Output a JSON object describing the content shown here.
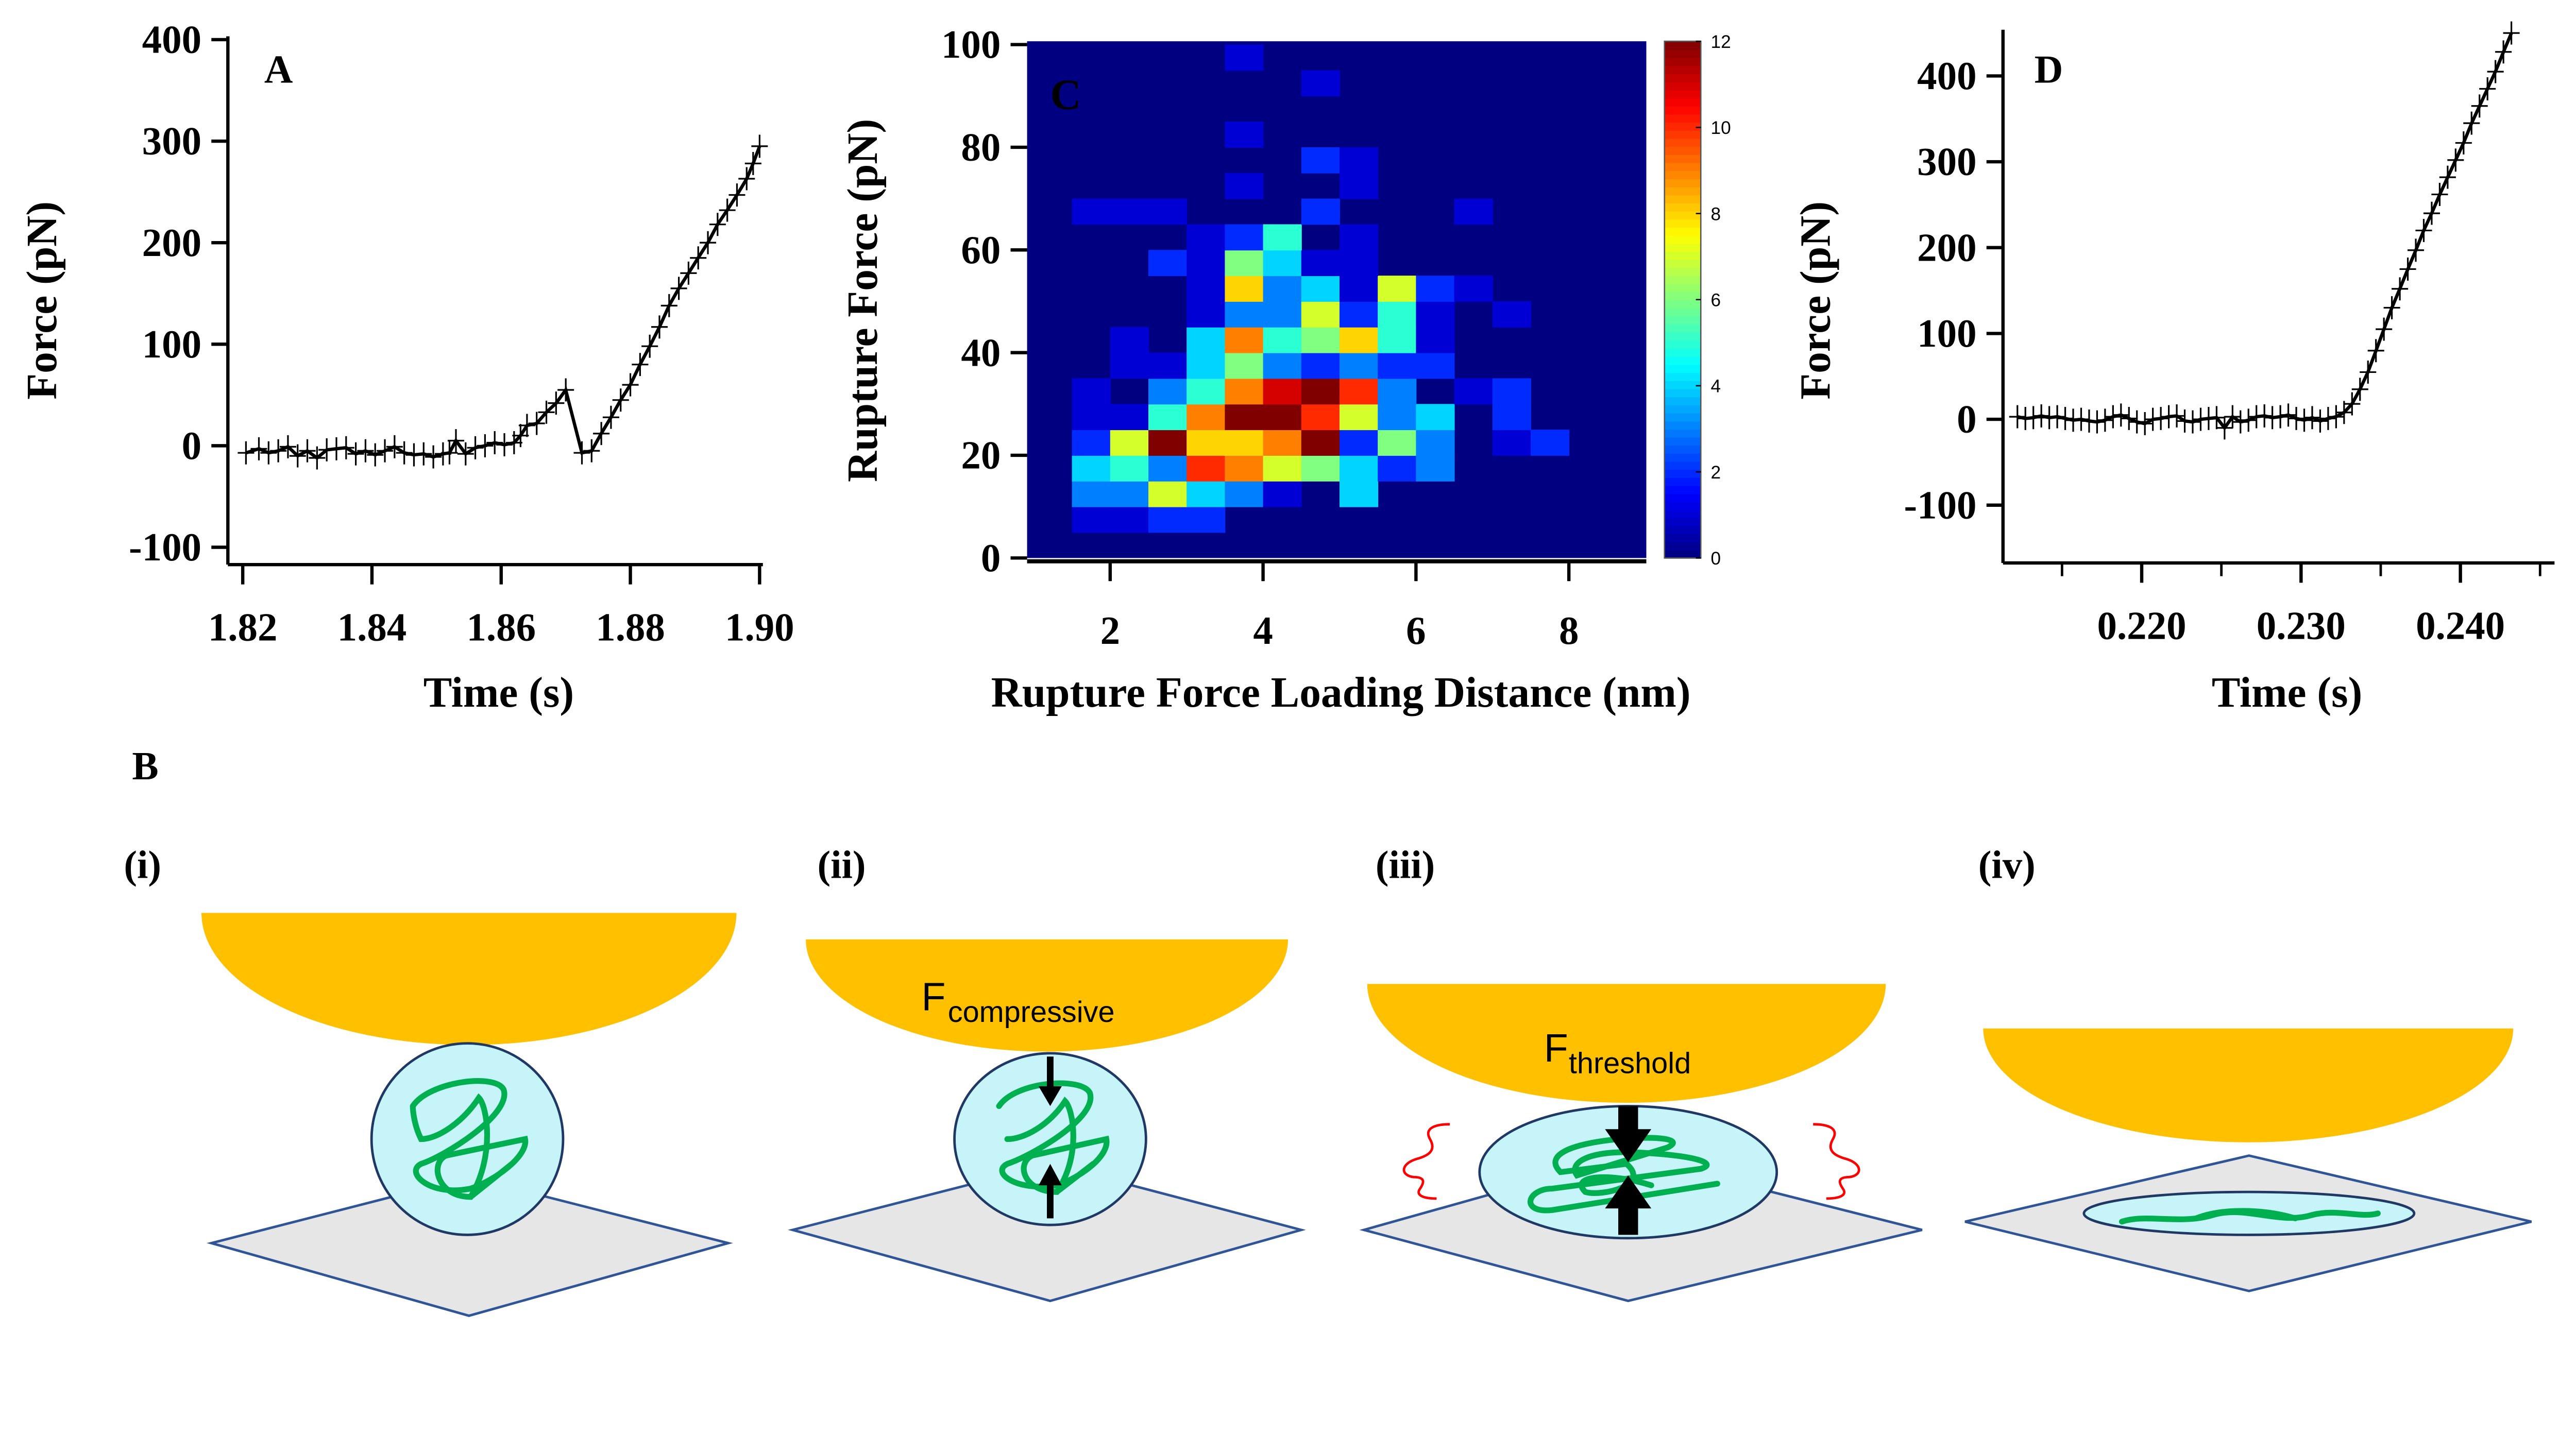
{
  "panel_b": {
    "letter": "B",
    "steps": [
      {
        "label": "(i)"
      },
      {
        "label": "(ii)",
        "force_main": "F",
        "force_sub": "compressive"
      },
      {
        "label": "(iii)",
        "force_main": "F",
        "force_sub": "threshold"
      },
      {
        "label": "(iv)"
      }
    ],
    "colors": {
      "tip": "#FFC000",
      "droplet": "#C6F4F8",
      "outline": "#1F3864",
      "chain": "#00B050",
      "surface": "#E6E6E6",
      "surface_edge": "#2F5597",
      "strain": "#FF0000",
      "arrow": "#000000"
    }
  },
  "chart_data": [
    {
      "panel": "A",
      "type": "line",
      "marker": "plus",
      "xlabel": "Time (s)",
      "ylabel": "Force (pN)",
      "xlim": [
        1.819,
        1.901
      ],
      "ylim": [
        -114,
        400
      ],
      "xticks": [
        1.82,
        1.84,
        1.86,
        1.88,
        1.9
      ],
      "xtick_labels": [
        "1.82",
        "1.84",
        "1.86",
        "1.88",
        "1.90"
      ],
      "yticks": [
        -100,
        0,
        100,
        200,
        300,
        400
      ],
      "ytick_labels": [
        "-100",
        "0",
        "100",
        "200",
        "300",
        "400"
      ],
      "grid": false,
      "x": [
        1.8205,
        1.8225,
        1.824,
        1.8255,
        1.827,
        1.8285,
        1.83,
        1.8315,
        1.833,
        1.8345,
        1.836,
        1.8375,
        1.839,
        1.8405,
        1.842,
        1.8435,
        1.845,
        1.8465,
        1.848,
        1.8495,
        1.851,
        1.852,
        1.853,
        1.8545,
        1.856,
        1.8575,
        1.859,
        1.8605,
        1.862,
        1.863,
        1.864,
        1.8655,
        1.867,
        1.8685,
        1.87,
        1.8725,
        1.874,
        1.8755,
        1.877,
        1.8785,
        1.88,
        1.8815,
        1.883,
        1.8845,
        1.886,
        1.8875,
        1.889,
        1.8905,
        1.892,
        1.8935,
        1.895,
        1.8965,
        1.898,
        1.899,
        1.9
      ],
      "y": [
        -7,
        -3,
        -7,
        -5,
        -1,
        -10,
        -5,
        -12,
        -4,
        -3,
        -2,
        -8,
        -5,
        -9,
        -5,
        -1,
        -7,
        -9,
        -8,
        -11,
        -8,
        -7,
        5,
        -8,
        -2,
        0,
        3,
        1,
        3,
        10,
        20,
        22,
        33,
        42,
        55,
        -7,
        -5,
        12,
        28,
        45,
        60,
        80,
        98,
        117,
        138,
        155,
        170,
        185,
        200,
        218,
        232,
        247,
        263,
        278,
        295
      ]
    },
    {
      "panel": "C",
      "type": "heatmap",
      "xlabel": "Rupture Force Loading Distance (nm)",
      "ylabel": "Rupture Force (pN)",
      "xlim": [
        1,
        9
      ],
      "ylim": [
        0,
        100
      ],
      "x_bin_width": 0.5,
      "y_bin_width": 5,
      "xticks": [
        2,
        4,
        6,
        8
      ],
      "xtick_labels": [
        "2",
        "4",
        "6",
        "8"
      ],
      "yticks": [
        0,
        20,
        40,
        60,
        80,
        100
      ],
      "ytick_labels": [
        "0",
        "20",
        "40",
        "60",
        "80",
        "100"
      ],
      "colormap": "jet",
      "colorbar_range": [
        0,
        12
      ],
      "colorbar_ticks": [
        "0",
        "2",
        "4",
        "6",
        "8",
        "10",
        "12"
      ],
      "counts_rows_from_bottom": [
        [
          0,
          0,
          0,
          0,
          0,
          0,
          0,
          0,
          0,
          0,
          0,
          0,
          0,
          0,
          0,
          0
        ],
        [
          0,
          1,
          1,
          2,
          2,
          0,
          0,
          0,
          0,
          0,
          0,
          0,
          0,
          0,
          0,
          0
        ],
        [
          0,
          3,
          3,
          7,
          4,
          3,
          1,
          0,
          4,
          0,
          0,
          0,
          0,
          0,
          0,
          0
        ],
        [
          0,
          4,
          5,
          3,
          10,
          9,
          7,
          6,
          4,
          2,
          3,
          0,
          0,
          0,
          0,
          0
        ],
        [
          0,
          2,
          7,
          12,
          8,
          8,
          9,
          12,
          2,
          6,
          3,
          0,
          1,
          2,
          0,
          0
        ],
        [
          0,
          1,
          1,
          5,
          9,
          12,
          12,
          10,
          7,
          3,
          4,
          0,
          2,
          0,
          0,
          0
        ],
        [
          0,
          1,
          0,
          3,
          5,
          9,
          11,
          12,
          10,
          3,
          0,
          1,
          2,
          0,
          0,
          0
        ],
        [
          0,
          0,
          1,
          1,
          4,
          6,
          3,
          2,
          3,
          2,
          2,
          0,
          0,
          0,
          0,
          0
        ],
        [
          0,
          0,
          1,
          0,
          4,
          9,
          5,
          6,
          8,
          5,
          1,
          0,
          0,
          0,
          0,
          0
        ],
        [
          0,
          0,
          0,
          0,
          1,
          3,
          3,
          7,
          2,
          5,
          1,
          0,
          1,
          0,
          0,
          0
        ],
        [
          0,
          0,
          0,
          0,
          1,
          8,
          3,
          4,
          1,
          7,
          2,
          1,
          0,
          0,
          0,
          0
        ],
        [
          0,
          0,
          0,
          2,
          1,
          6,
          4,
          1,
          1,
          0,
          0,
          0,
          0,
          0,
          0,
          0
        ],
        [
          0,
          0,
          0,
          0,
          1,
          2,
          5,
          0,
          1,
          0,
          0,
          0,
          0,
          0,
          0,
          0
        ],
        [
          0,
          1,
          1,
          1,
          0,
          0,
          0,
          2,
          0,
          0,
          0,
          1,
          0,
          0,
          0,
          0
        ],
        [
          0,
          0,
          0,
          0,
          0,
          1,
          0,
          0,
          1,
          0,
          0,
          0,
          0,
          0,
          0,
          0
        ],
        [
          0,
          0,
          0,
          0,
          0,
          0,
          0,
          2,
          1,
          0,
          0,
          0,
          0,
          0,
          0,
          0
        ],
        [
          0,
          0,
          0,
          0,
          0,
          1,
          0,
          0,
          0,
          0,
          0,
          0,
          0,
          0,
          0,
          0
        ],
        [
          0,
          0,
          0,
          0,
          0,
          0,
          0,
          0,
          0,
          0,
          0,
          0,
          0,
          0,
          0,
          0
        ],
        [
          0,
          0,
          0,
          0,
          0,
          0,
          0,
          1,
          0,
          0,
          0,
          0,
          0,
          0,
          0,
          0
        ],
        [
          0,
          0,
          0,
          0,
          0,
          1,
          0,
          0,
          0,
          0,
          0,
          0,
          0,
          0,
          0,
          0
        ]
      ]
    },
    {
      "panel": "D",
      "type": "line",
      "marker": "plus",
      "xlabel": "Time (s)",
      "ylabel": "Force (pN)",
      "xlim": [
        0.2113,
        0.2455
      ],
      "ylim": [
        -167,
        446
      ],
      "xticks": [
        0.22,
        0.23,
        0.24
      ],
      "xtick_labels": [
        "0.220",
        "0.230",
        "0.240"
      ],
      "xminor": [
        0.215,
        0.225,
        0.235,
        0.245
      ],
      "yticks": [
        -100,
        0,
        100,
        200,
        300,
        400
      ],
      "ytick_labels": [
        "-100",
        "0",
        "100",
        "200",
        "300",
        "400"
      ],
      "grid": false,
      "x": [
        0.2122,
        0.2127,
        0.2132,
        0.2137,
        0.2142,
        0.2147,
        0.2152,
        0.2157,
        0.2162,
        0.2167,
        0.2172,
        0.2177,
        0.2182,
        0.2187,
        0.2192,
        0.2197,
        0.2202,
        0.2207,
        0.2212,
        0.2217,
        0.2222,
        0.2227,
        0.2232,
        0.2237,
        0.2242,
        0.2247,
        0.2252,
        0.2257,
        0.2262,
        0.2267,
        0.2272,
        0.2277,
        0.2282,
        0.2287,
        0.2292,
        0.2297,
        0.2302,
        0.2307,
        0.2312,
        0.2317,
        0.2322,
        0.2327,
        0.2332,
        0.2337,
        0.2342,
        0.2347,
        0.2352,
        0.2357,
        0.2362,
        0.2367,
        0.2372,
        0.2377,
        0.2382,
        0.2387,
        0.2392,
        0.2397,
        0.2402,
        0.2407,
        0.2412,
        0.2417,
        0.2422,
        0.2427,
        0.2432
      ],
      "y": [
        3,
        1,
        2,
        4,
        2,
        3,
        1,
        -1,
        0,
        -2,
        -3,
        -1,
        3,
        5,
        1,
        -3,
        -5,
        0,
        1,
        3,
        4,
        -2,
        -3,
        0,
        1,
        2,
        -10,
        3,
        -3,
        -1,
        3,
        4,
        2,
        3,
        5,
        1,
        -1,
        2,
        -2,
        1,
        3,
        8,
        18,
        35,
        55,
        80,
        105,
        130,
        152,
        175,
        197,
        220,
        240,
        262,
        282,
        302,
        322,
        345,
        365,
        385,
        405,
        428,
        450
      ]
    }
  ]
}
